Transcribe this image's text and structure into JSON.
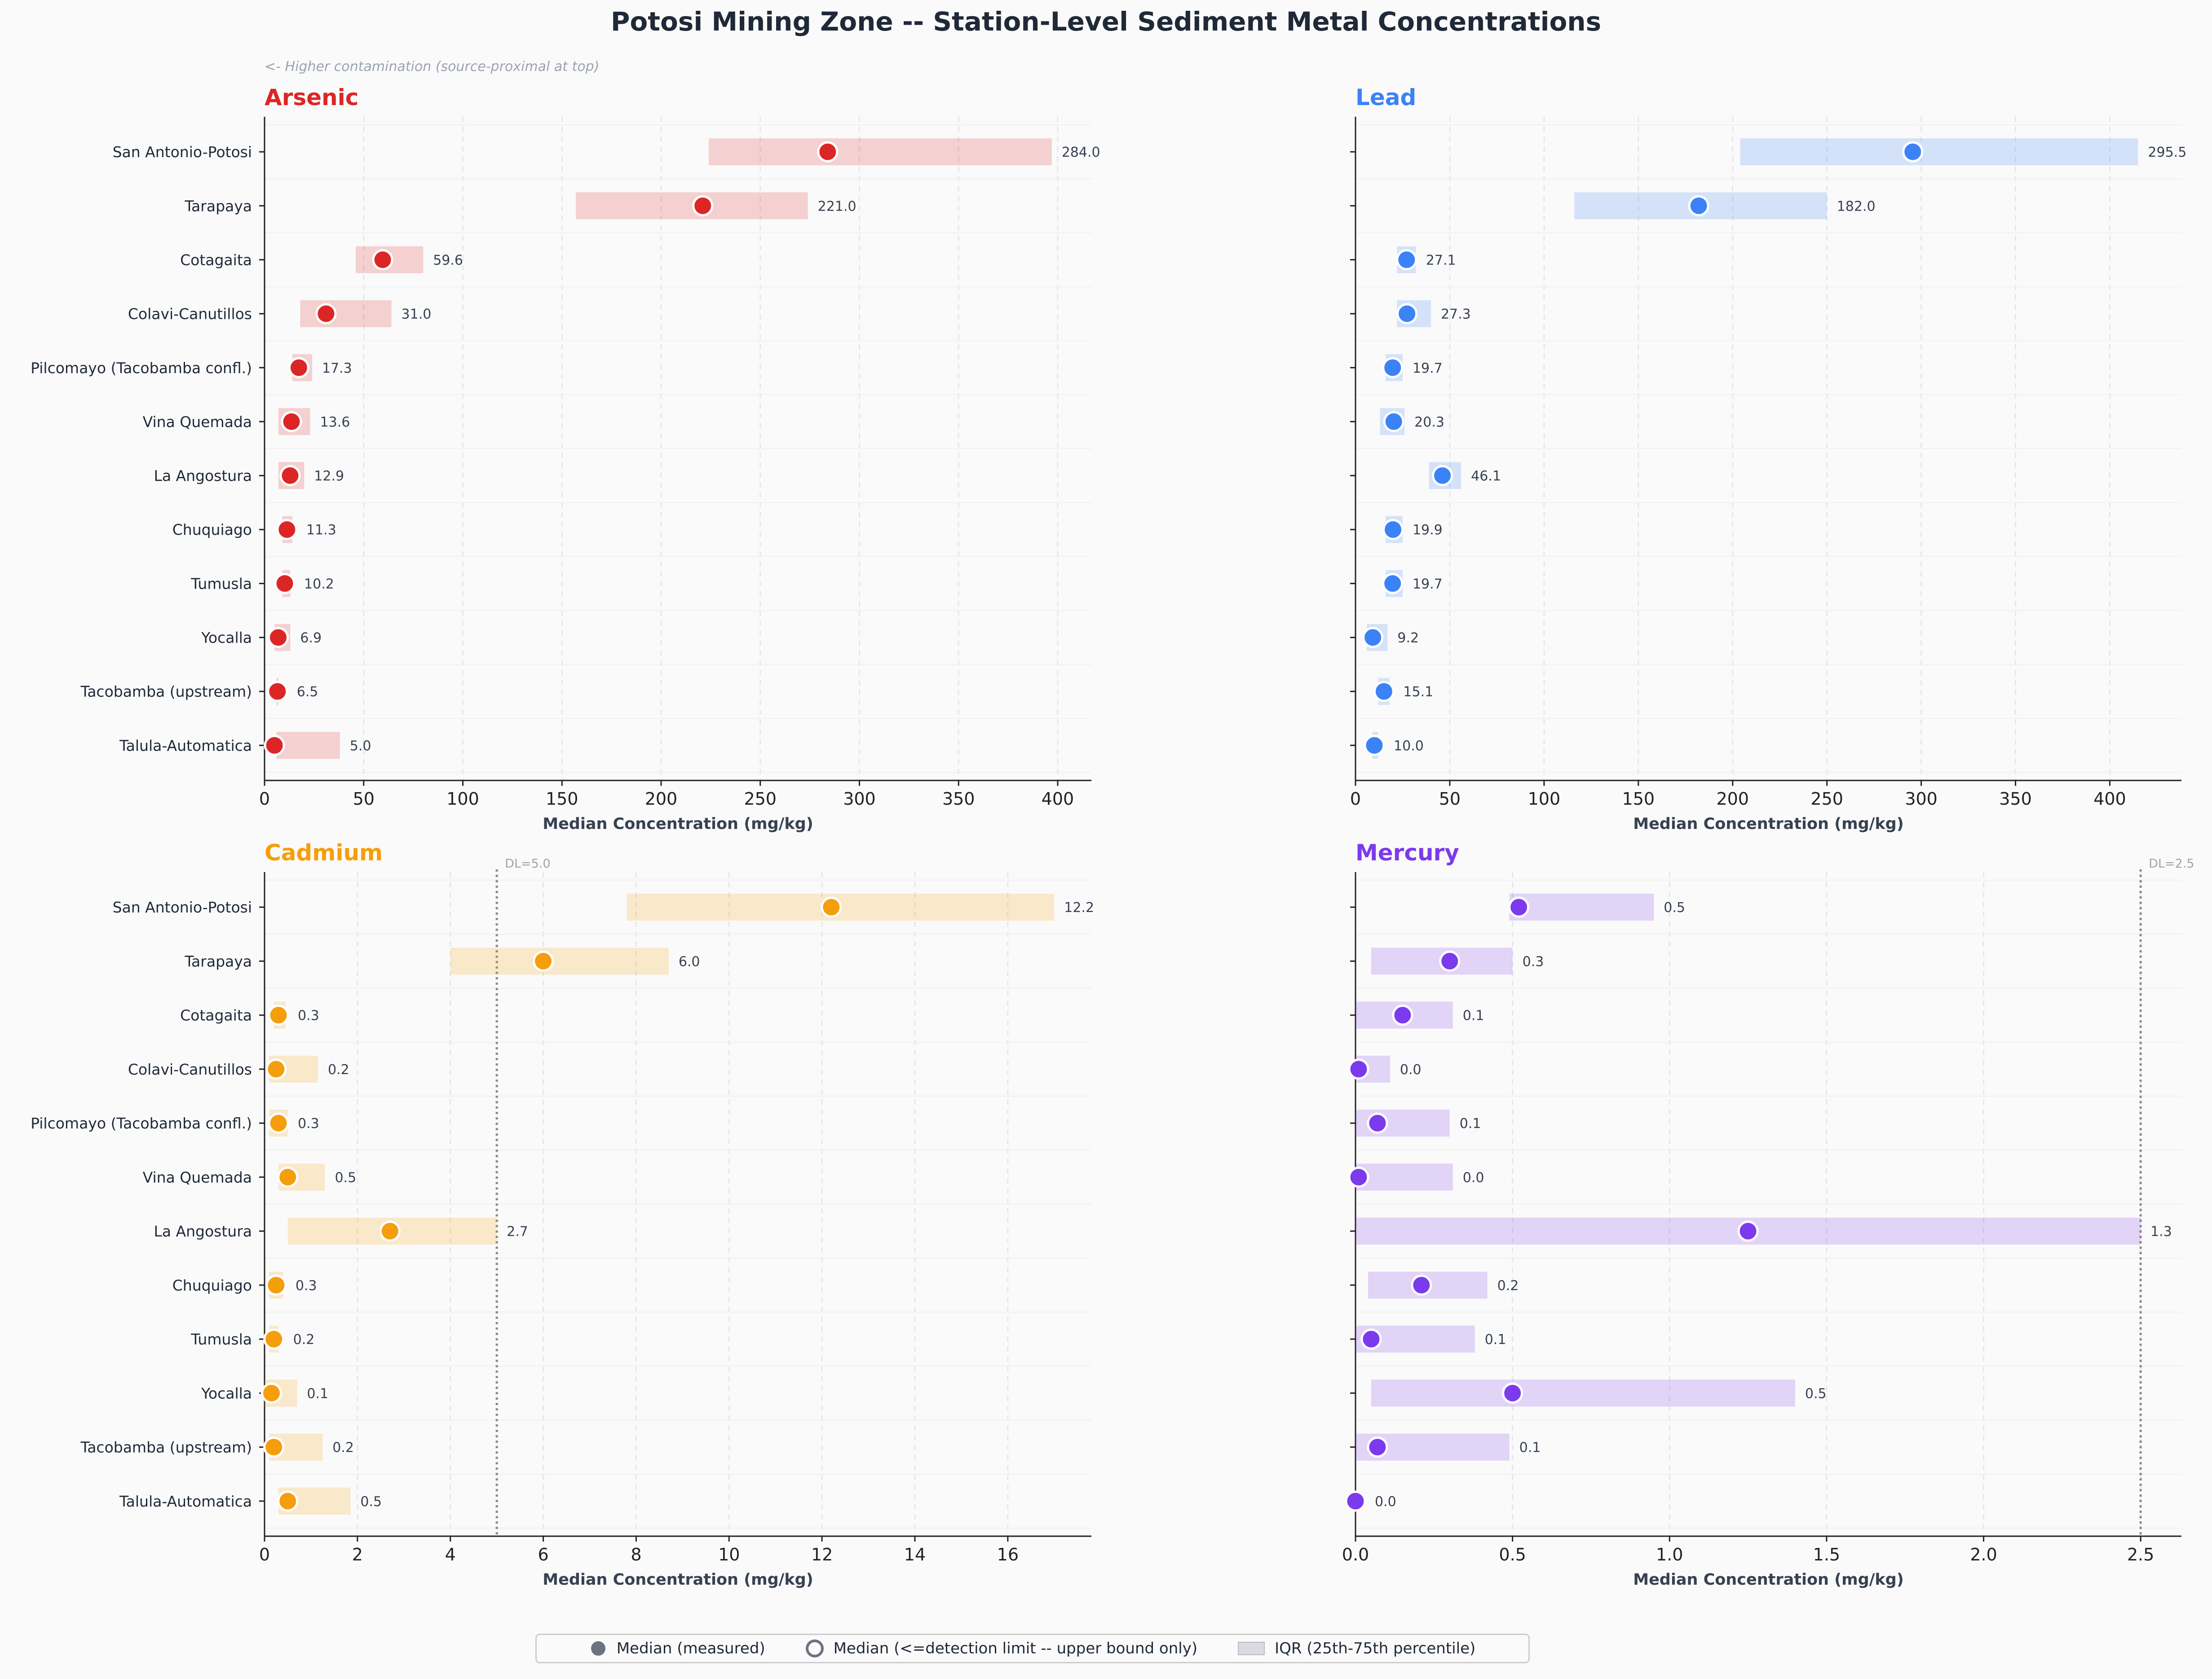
{
  "title": "Potosi Mining Zone -- Station-Level Sediment Metal Concentrations",
  "direction_note": "<- Higher contamination (source-proximal at top)",
  "legend": {
    "measured": "Median (measured)",
    "below_dl": "Median (<=detection limit -- upper bound only)",
    "iqr": "IQR (25th-75th percentile)"
  },
  "colors": {
    "background": "#fafafa",
    "arsenic": "#dc2626",
    "lead": "#3b82f6",
    "cadmium": "#f59e0b",
    "mercury": "#7c3aed",
    "legend_marker": "#6b7280"
  },
  "chart_data": [
    {
      "type": "dot-range",
      "title": "Arsenic",
      "xlabel": "Median Concentration (mg/kg)",
      "xlim": [
        0,
        417
      ],
      "xticks": [
        0,
        50,
        100,
        150,
        200,
        250,
        300,
        350,
        400
      ],
      "categories": [
        "San Antonio-Potosi",
        "Tarapaya",
        "Cotagaita",
        "Colavi-Canutillos",
        "Pilcomayo (Tacobamba confl.)",
        "Vina Quemada",
        "La Angostura",
        "Chuquiago",
        "Tumusla",
        "Yocalla",
        "Tacobamba (upstream)",
        "Talula-Automatica"
      ],
      "median": [
        284.0,
        221.0,
        59.6,
        31.0,
        17.3,
        13.6,
        12.9,
        11.3,
        10.2,
        6.9,
        6.5,
        5.0
      ],
      "labels": [
        "284.0",
        "221.0",
        "59.6",
        "31.0",
        "17.3",
        "13.6",
        "12.9",
        "11.3",
        "10.2",
        "6.9",
        "6.5",
        "5.0"
      ],
      "q1": [
        224,
        157,
        46,
        18,
        14,
        7,
        7,
        9,
        9,
        5,
        6,
        6
      ],
      "q3": [
        397,
        274,
        80,
        64,
        24,
        23,
        20,
        14,
        13,
        13,
        7,
        38
      ],
      "detection_limit": null,
      "grid": true
    },
    {
      "type": "dot-range",
      "title": "Lead",
      "xlabel": "Median Concentration (mg/kg)",
      "xlim": [
        0,
        438
      ],
      "xticks": [
        0,
        50,
        100,
        150,
        200,
        250,
        300,
        350,
        400
      ],
      "categories": [
        "San Antonio-Potosi",
        "Tarapaya",
        "Cotagaita",
        "Colavi-Canutillos",
        "Pilcomayo (Tacobamba confl.)",
        "Vina Quemada",
        "La Angostura",
        "Chuquiago",
        "Tumusla",
        "Yocalla",
        "Tacobamba (upstream)",
        "Talula-Automatica"
      ],
      "median": [
        295.5,
        182.0,
        27.1,
        27.3,
        19.7,
        20.3,
        46.1,
        19.9,
        19.7,
        9.2,
        15.1,
        10.0
      ],
      "labels": [
        "295.5",
        "182.0",
        "27.1",
        "27.3",
        "19.7",
        "20.3",
        "46.1",
        "19.9",
        "19.7",
        "9.2",
        "15.1",
        "10.0"
      ],
      "q1": [
        204,
        116,
        22,
        22,
        16,
        13,
        39,
        16,
        16,
        6,
        12,
        9
      ],
      "q3": [
        415,
        250,
        32,
        40,
        25,
        26,
        56,
        25,
        25,
        17,
        18,
        12
      ],
      "detection_limit": null,
      "grid": true
    },
    {
      "type": "dot-range",
      "title": "Cadmium",
      "xlabel": "Median Concentration (mg/kg)",
      "xlim": [
        0,
        17.8
      ],
      "xticks": [
        0,
        2,
        4,
        6,
        8,
        10,
        12,
        14,
        16
      ],
      "categories": [
        "San Antonio-Potosi",
        "Tarapaya",
        "Cotagaita",
        "Colavi-Canutillos",
        "Pilcomayo (Tacobamba confl.)",
        "Vina Quemada",
        "La Angostura",
        "Chuquiago",
        "Tumusla",
        "Yocalla",
        "Tacobamba (upstream)",
        "Talula-Automatica"
      ],
      "median": [
        12.2,
        6.0,
        0.3,
        0.25,
        0.3,
        0.5,
        2.7,
        0.25,
        0.2,
        0.15,
        0.2,
        0.5
      ],
      "labels": [
        "12.2",
        "6.0",
        "0.3",
        "0.2",
        "0.3",
        "0.5",
        "2.7",
        "0.3",
        "0.2",
        "0.1",
        "0.2",
        "0.5"
      ],
      "q1": [
        7.8,
        4.0,
        0.2,
        0.1,
        0.1,
        0.3,
        0.5,
        0.1,
        0.1,
        0.0,
        0.1,
        0.3
      ],
      "q3": [
        17.0,
        8.7,
        0.45,
        1.15,
        0.5,
        1.3,
        5.0,
        0.4,
        0.3,
        0.7,
        1.25,
        1.85
      ],
      "detection_limit": 5.0,
      "detection_label": "DL=5.0",
      "grid": true
    },
    {
      "type": "dot-range",
      "title": "Mercury",
      "xlabel": "Median Concentration (mg/kg)",
      "xlim": [
        0,
        2.63
      ],
      "xticks": [
        0.0,
        0.5,
        1.0,
        1.5,
        2.0,
        2.5
      ],
      "categories": [
        "San Antonio-Potosi",
        "Tarapaya",
        "Cotagaita",
        "Colavi-Canutillos",
        "Pilcomayo (Tacobamba confl.)",
        "Vina Quemada",
        "La Angostura",
        "Chuquiago",
        "Tumusla",
        "Yocalla",
        "Tacobamba (upstream)",
        "Talula-Automatica"
      ],
      "median": [
        0.52,
        0.3,
        0.15,
        0.01,
        0.07,
        0.01,
        1.25,
        0.21,
        0.05,
        0.5,
        0.07,
        0.0
      ],
      "labels": [
        "0.5",
        "0.3",
        "0.1",
        "0.0",
        "0.1",
        "0.0",
        "1.3",
        "0.2",
        "0.1",
        "0.5",
        "0.1",
        "0.0"
      ],
      "q1": [
        0.49,
        0.05,
        0.0,
        0.0,
        0.0,
        0.0,
        0.0,
        0.04,
        0.0,
        0.05,
        0.0,
        0.0
      ],
      "q3": [
        0.95,
        0.5,
        0.31,
        0.11,
        0.3,
        0.31,
        2.5,
        0.42,
        0.38,
        1.4,
        0.49,
        0.0
      ],
      "detection_limit": 2.5,
      "detection_label": "DL=2.5",
      "grid": true
    }
  ]
}
